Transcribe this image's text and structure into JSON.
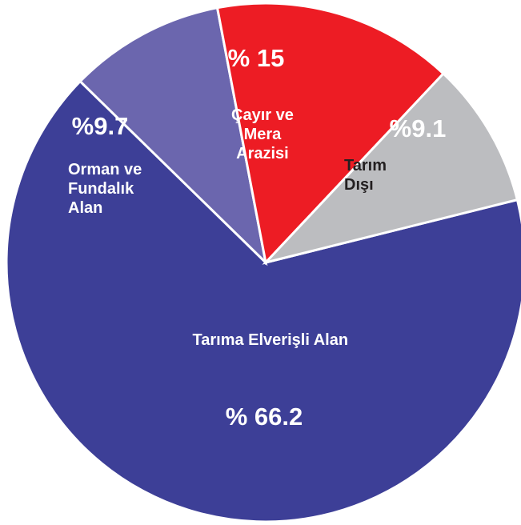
{
  "chart_data": {
    "type": "pie",
    "categories": [
      "Tarıma Elverişli Alan",
      "Orman ve\nFundalık\nAlan",
      "Çayır ve\nMera\nArazisi",
      "Tarım\nDışı"
    ],
    "values": [
      66.2,
      9.7,
      15,
      9.1
    ],
    "value_labels": [
      "% 66.2",
      "%9.7",
      "% 15",
      "%9.1"
    ],
    "colors": [
      "#3d3f97",
      "#6b66ae",
      "#ed1c24",
      "#bcbdc0"
    ]
  }
}
